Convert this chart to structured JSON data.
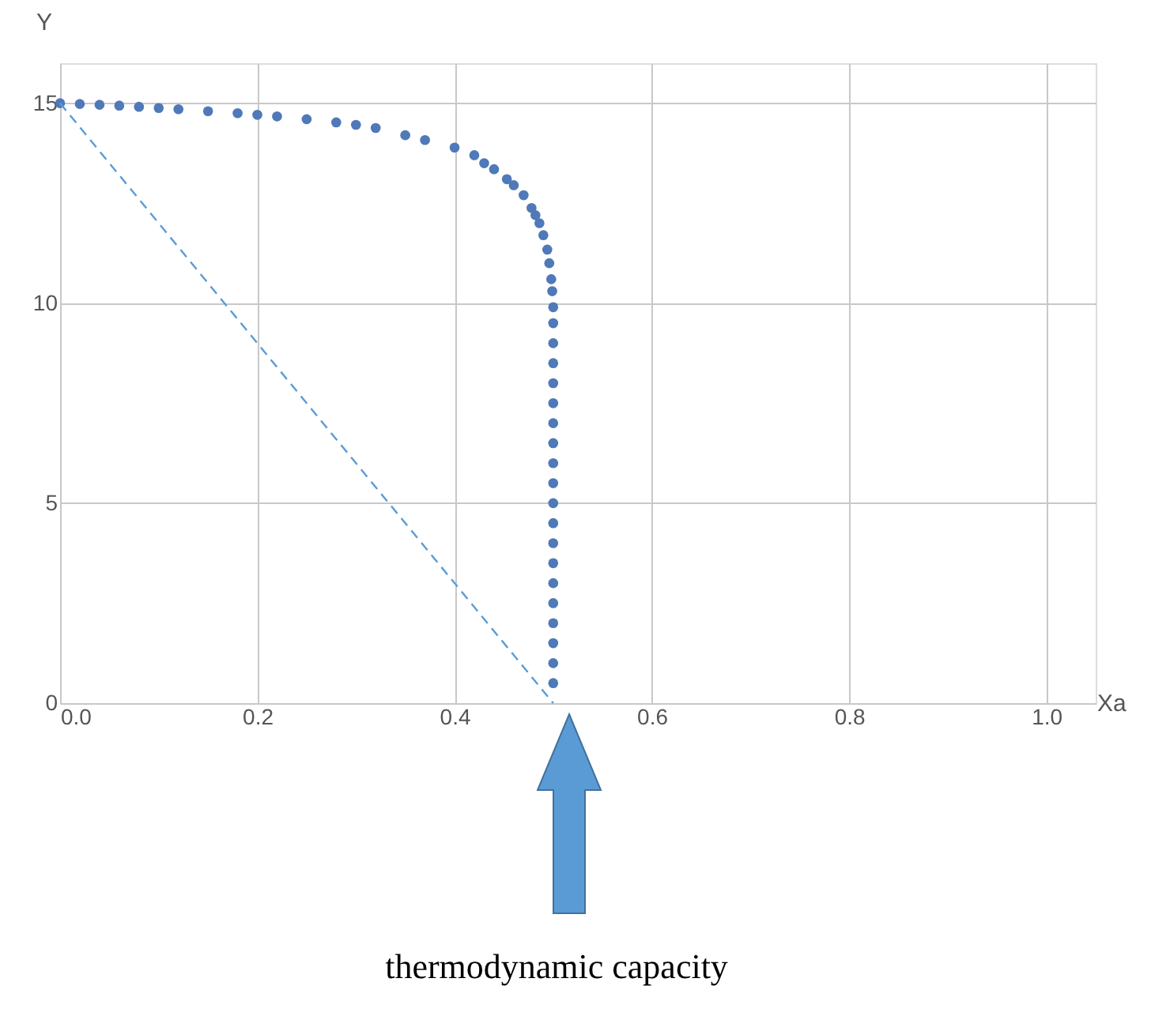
{
  "chart_data": {
    "type": "scatter",
    "xlabel": "Xa",
    "ylabel": "Y",
    "xlim": [
      0,
      1.05
    ],
    "ylim": [
      0,
      16
    ],
    "xticks": [
      {
        "value": 0,
        "label": "0.0"
      },
      {
        "value": 0.2,
        "label": "0.2"
      },
      {
        "value": 0.4,
        "label": "0.4"
      },
      {
        "value": 0.6,
        "label": "0.6"
      },
      {
        "value": 0.8,
        "label": "0.8"
      },
      {
        "value": 1,
        "label": "1.0"
      }
    ],
    "yticks": [
      0,
      5,
      10,
      15
    ],
    "grid": true,
    "series": [
      {
        "marker": "circle",
        "color": "#4f79b8",
        "x": [
          0,
          0.02,
          0.04,
          0.06,
          0.08,
          0.1,
          0.12,
          0.15,
          0.18,
          0.2,
          0.22,
          0.25,
          0.28,
          0.3,
          0.32,
          0.35,
          0.37,
          0.4,
          0.42,
          0.43,
          0.44,
          0.453,
          0.46,
          0.47,
          0.478,
          0.482,
          0.486,
          0.49,
          0.494,
          0.496,
          0.498,
          0.499,
          0.5,
          0.5,
          0.5,
          0.5,
          0.5,
          0.5,
          0.5,
          0.5,
          0.5,
          0.5,
          0.5,
          0.5,
          0.5,
          0.5,
          0.5,
          0.5,
          0.5,
          0.5,
          0.5,
          0.5
        ],
        "values": [
          15,
          14.98,
          14.96,
          14.94,
          14.91,
          14.88,
          14.85,
          14.8,
          14.75,
          14.71,
          14.67,
          14.6,
          14.52,
          14.46,
          14.38,
          14.2,
          14.08,
          13.89,
          13.7,
          13.5,
          13.35,
          13.1,
          12.95,
          12.7,
          12.38,
          12.2,
          12.0,
          11.7,
          11.34,
          11.0,
          10.6,
          10.3,
          9.9,
          9.5,
          9,
          8.5,
          8,
          7.5,
          7,
          6.5,
          6,
          5.5,
          5,
          4.5,
          4,
          3.5,
          3,
          2.5,
          2,
          1.5,
          1,
          0.5
        ]
      },
      {
        "type": "line",
        "line_style": "dashed",
        "color": "#5b9bd5",
        "x": [
          0,
          0.5
        ],
        "values": [
          15,
          0
        ]
      }
    ],
    "annotations": [
      "thermodynamic capacity"
    ]
  }
}
